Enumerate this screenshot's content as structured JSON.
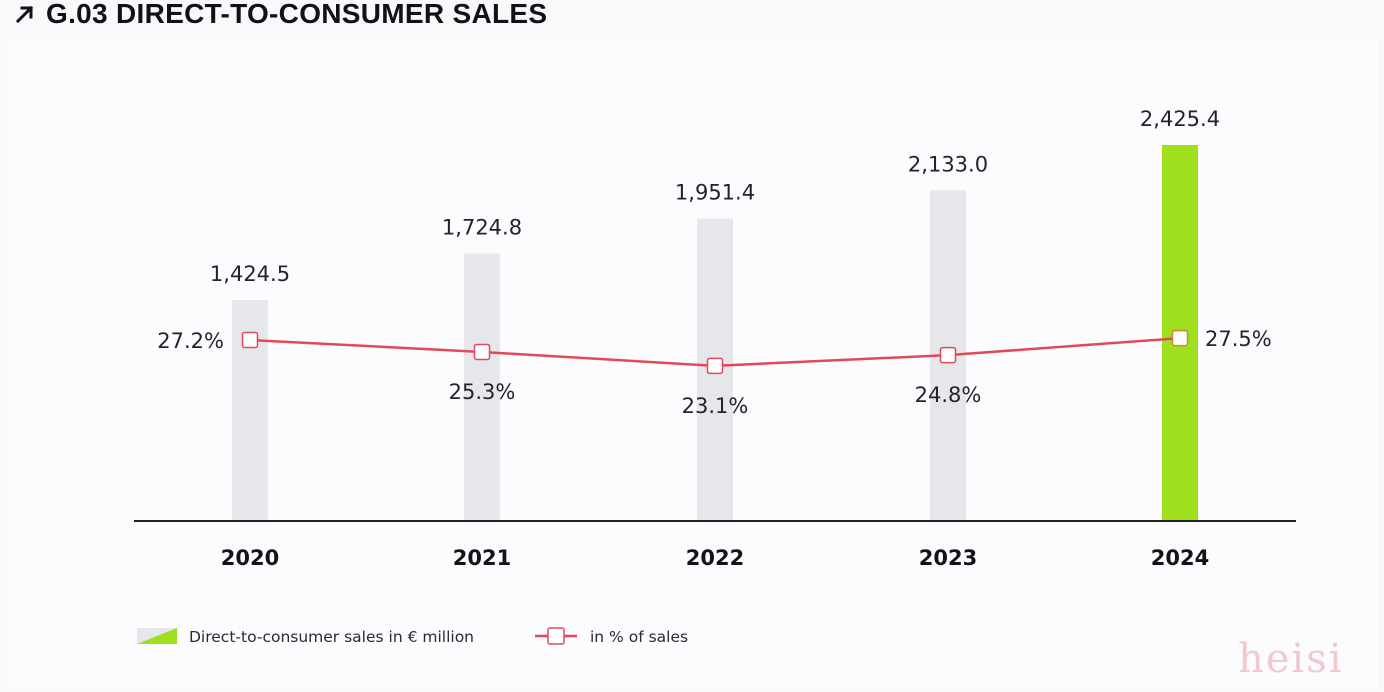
{
  "header": {
    "icon": "arrow-up-right-icon",
    "title": "G.03 DIRECT-TO-CONSUMER SALES"
  },
  "colors": {
    "bar_default": "#e6e7ea",
    "bar_highlight": "#9fdf1d",
    "line": "#e2485c",
    "marker_fill": "#ffffff",
    "axis": "#222222"
  },
  "chart_data": {
    "type": "bar",
    "title": "G.03 DIRECT-TO-CONSUMER SALES",
    "xlabel": "",
    "ylabel": "",
    "grid": false,
    "legend_position": "bottom-left",
    "categories": [
      "2020",
      "2021",
      "2022",
      "2023",
      "2024"
    ],
    "series": [
      {
        "name": "Direct-to-consumer sales in € million",
        "type": "bar",
        "values": [
          1424.5,
          1724.8,
          1951.4,
          2133.0,
          2425.4
        ],
        "labels": [
          "1,424.5",
          "1,724.8",
          "1,951.4",
          "2,133.0",
          "2,425.4"
        ],
        "highlight_index": 4
      },
      {
        "name": "in % of sales",
        "type": "line",
        "values": [
          27.2,
          25.3,
          23.1,
          24.8,
          27.5
        ],
        "labels": [
          "27.2%",
          "25.3%",
          "23.1%",
          "24.8%",
          "27.5%"
        ],
        "label_positions": [
          "left",
          "below",
          "below",
          "below",
          "right"
        ]
      }
    ]
  },
  "legend": {
    "items": [
      {
        "icon": "bar-swatch-icon",
        "label": "Direct-to-consumer sales in € million"
      },
      {
        "icon": "line-marker-icon",
        "label": "in % of sales"
      }
    ]
  },
  "watermark": "heisi"
}
